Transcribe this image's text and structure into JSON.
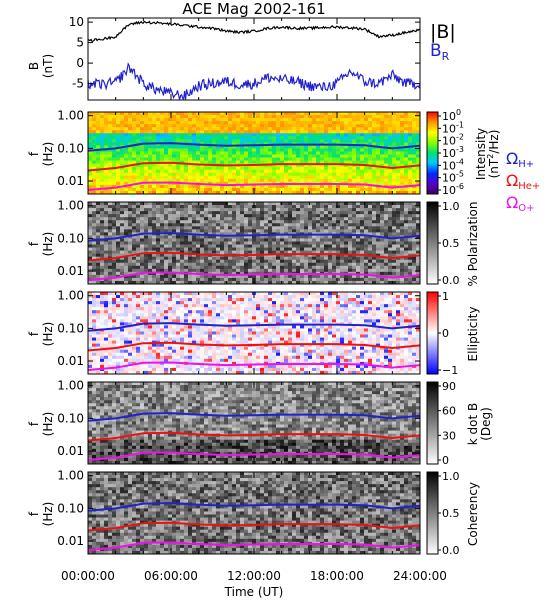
{
  "title": "ACE Mag 2002-161",
  "x_axis": {
    "ticks": [
      "00:00:00",
      "06:00:00",
      "12:00:00",
      "18:00:00",
      "24:00:00"
    ],
    "label": "Time (UT)",
    "range_hours": [
      0,
      24
    ]
  },
  "field_panel": {
    "ylabel_main": "B",
    "ylabel_unit": "(nT)",
    "yticks": [
      "10",
      "5",
      "0",
      "-5"
    ],
    "ylim": [
      -9,
      11
    ],
    "legend": [
      {
        "label": "|B|",
        "color": "#000000"
      },
      {
        "label": "B",
        "sub": "R",
        "color": "#2222cc"
      }
    ]
  },
  "freq_axis": {
    "ylabel_main": "f",
    "ylabel_unit": "(Hz)",
    "ticks": [
      "1.00",
      "0.10",
      "0.01"
    ],
    "values": [
      1.0,
      0.1,
      0.01
    ],
    "ylim": [
      0.004,
      1.3
    ]
  },
  "gyro_legend": [
    {
      "omega": "Ω",
      "sub": "H+",
      "color": "#2222cc"
    },
    {
      "omega": "Ω",
      "sub": "He+",
      "color": "#ee1111"
    },
    {
      "omega": "Ω",
      "sub": "O+",
      "color": "#ee11ee"
    }
  ],
  "spectro_panels": [
    {
      "name": "intensity",
      "colorbar": "rainbow",
      "cb_ticks": [
        {
          "t": "10",
          "e": "0"
        },
        {
          "t": "10",
          "e": "-1"
        },
        {
          "t": "10",
          "e": "-2"
        },
        {
          "t": "10",
          "e": "-3"
        },
        {
          "t": "10",
          "e": "-4"
        },
        {
          "t": "10",
          "e": "-5"
        },
        {
          "t": "10",
          "e": "-6"
        }
      ],
      "cb_label_1": "Intensity",
      "cb_label_2a": "(nT",
      "cb_label_2b": "2",
      "cb_label_2c": "/Hz)"
    },
    {
      "name": "polarization",
      "colorbar": "gray",
      "cb_ticks": [
        {
          "t": "1.0",
          "e": ""
        },
        {
          "t": "0.5",
          "e": ""
        },
        {
          "t": "0.0",
          "e": ""
        }
      ],
      "cb_label_1": "% Polarization",
      "cb_label_2a": "",
      "cb_label_2b": "",
      "cb_label_2c": ""
    },
    {
      "name": "ellipticity",
      "colorbar": "bwr",
      "cb_ticks": [
        {
          "t": "1",
          "e": ""
        },
        {
          "t": "0",
          "e": ""
        },
        {
          "t": "−1",
          "e": ""
        }
      ],
      "cb_label_1": "Ellipticity",
      "cb_label_2a": "",
      "cb_label_2b": "",
      "cb_label_2c": ""
    },
    {
      "name": "kdotb",
      "colorbar": "gray",
      "cb_ticks": [
        {
          "t": "90",
          "e": ""
        },
        {
          "t": "60",
          "e": ""
        },
        {
          "t": "30",
          "e": ""
        },
        {
          "t": "0",
          "e": ""
        }
      ],
      "cb_label_1": "k dot B",
      "cb_label_2a": "(Deg)",
      "cb_label_2b": "",
      "cb_label_2c": ""
    },
    {
      "name": "coherency",
      "colorbar": "gray",
      "cb_ticks": [
        {
          "t": "1.0",
          "e": ""
        },
        {
          "t": "0.5",
          "e": ""
        },
        {
          "t": "0.0",
          "e": ""
        }
      ],
      "cb_label_1": "Coherency",
      "cb_label_2a": "",
      "cb_label_2b": "",
      "cb_label_2c": ""
    }
  ],
  "chart_data": [
    {
      "type": "line",
      "panel": "magnetic-field",
      "x_hours": [
        0,
        1,
        2,
        3,
        4,
        5,
        6,
        7,
        8,
        9,
        10,
        11,
        12,
        13,
        14,
        15,
        16,
        17,
        18,
        19,
        20,
        21,
        22,
        23,
        24
      ],
      "series": [
        {
          "name": "|B|",
          "values": [
            5.5,
            5.8,
            6.5,
            9.5,
            10,
            9.8,
            9.5,
            9.2,
            8.8,
            8.5,
            7.8,
            7.5,
            7.8,
            8.5,
            8.8,
            8.5,
            8.5,
            8.7,
            8.8,
            8.6,
            8.3,
            6.5,
            6.8,
            7.5,
            8
          ]
        },
        {
          "name": "B",
          "values": [
            -5,
            -5.2,
            -4.8,
            -1,
            -5,
            -6.5,
            -7.5,
            -8,
            -5.5,
            -5,
            -4.5,
            -5.2,
            -5,
            -3.5,
            -4,
            -4.5,
            -5.5,
            -6,
            -5,
            -2,
            -4.5,
            -5,
            -3,
            -5,
            -5
          ]
        }
      ],
      "ylim": [
        -9,
        11
      ]
    },
    {
      "type": "line",
      "panel": "gyrofrequencies",
      "x_hours": [
        0,
        2,
        4,
        6,
        8,
        10,
        12,
        14,
        16,
        18,
        20,
        22,
        24
      ],
      "series": [
        {
          "name": "ΩH+",
          "values": [
            0.085,
            0.1,
            0.14,
            0.145,
            0.13,
            0.12,
            0.125,
            0.13,
            0.13,
            0.13,
            0.125,
            0.1,
            0.12
          ]
        },
        {
          "name": "ΩHe+",
          "values": [
            0.021,
            0.025,
            0.035,
            0.036,
            0.032,
            0.03,
            0.031,
            0.033,
            0.033,
            0.033,
            0.031,
            0.025,
            0.03
          ]
        },
        {
          "name": "ΩO+",
          "values": [
            0.0053,
            0.0063,
            0.0088,
            0.009,
            0.0081,
            0.0075,
            0.0078,
            0.0081,
            0.0081,
            0.0081,
            0.0078,
            0.0063,
            0.0075
          ]
        }
      ]
    }
  ]
}
